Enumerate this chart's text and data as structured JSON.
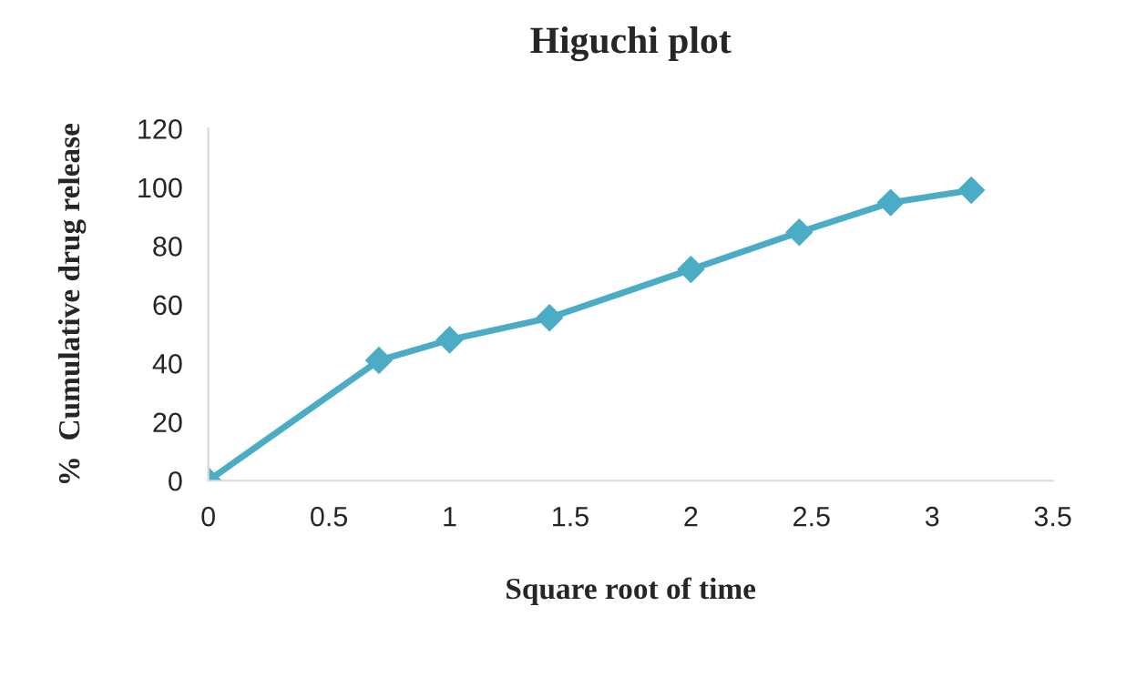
{
  "chart_data": {
    "type": "line",
    "title": "Higuchi plot",
    "xlabel": "Square root of time",
    "ylabel": "%  Cumulative drug release",
    "x": [
      0,
      0.707,
      1,
      1.414,
      2,
      2.449,
      2.828,
      3.162
    ],
    "series": [
      {
        "color": "#4bacc6",
        "values": [
          0,
          41,
          48,
          55.5,
          72,
          84.7,
          94.8,
          99
        ]
      }
    ],
    "xlim": [
      0,
      3.5
    ],
    "xticks": [
      0,
      0.5,
      1,
      1.5,
      2,
      2.5,
      3,
      3.5
    ],
    "ylim": [
      0,
      120
    ],
    "yticks": [
      0,
      20,
      40,
      60,
      80,
      100,
      120
    ],
    "marker": "diamond",
    "line_style": "solid",
    "grid": false,
    "legend": false
  }
}
